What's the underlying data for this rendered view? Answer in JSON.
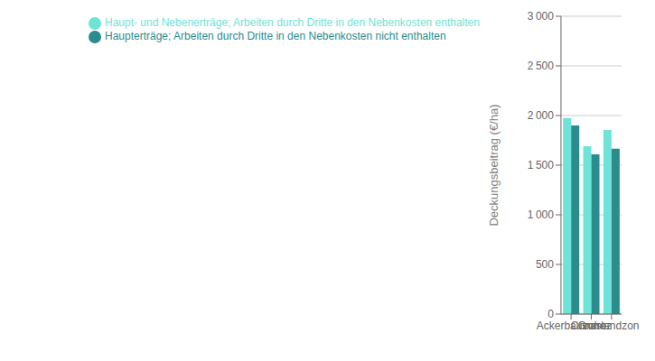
{
  "chart_data": {
    "type": "bar",
    "categories": [
      "Ackerbauzone",
      "Condroz",
      "Graslandzone"
    ],
    "series": [
      {
        "name": "Haupt- und Nebenerträge; Arbeiten durch Dritte in den Nebenkosten enthalten",
        "color": "#6EE3D8",
        "values": [
          1975,
          1690,
          1855
        ]
      },
      {
        "name": "Haupterträge; Arbeiten durch Dritte in den Nebenkosten nicht enthalten",
        "color": "#2A8C8C",
        "values": [
          1900,
          1610,
          1665
        ]
      }
    ],
    "ylabel": "Deckungsbeitrag (€/ha)",
    "ylim": [
      0,
      3000
    ],
    "yticks": [
      0,
      500,
      {
        "value": 1000,
        "label": "1 000"
      },
      {
        "value": 1500,
        "label": "1 500"
      },
      {
        "value": 2000,
        "label": "2 000"
      },
      {
        "value": 2500,
        "label": "2 500"
      },
      {
        "value": 3000,
        "label": "3 000"
      }
    ],
    "grid": true,
    "legend": "top-left"
  }
}
